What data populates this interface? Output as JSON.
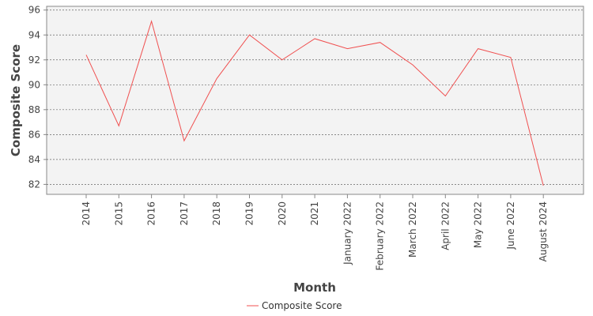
{
  "chart_data": {
    "type": "line",
    "title": "",
    "xlabel": "Month",
    "ylabel": "Composite Score",
    "categories": [
      "2014",
      "2015",
      "2016",
      "2017",
      "2018",
      "2019",
      "2020",
      "2021",
      "January 2022",
      "February 2022",
      "March 2022",
      "April 2022",
      "May 2022",
      "June 2022",
      "August 2024"
    ],
    "series": [
      {
        "name": "Composite Score",
        "color": "#f05050",
        "values": [
          92.4,
          86.7,
          95.1,
          85.5,
          90.5,
          94.0,
          92.0,
          93.7,
          92.9,
          93.4,
          91.6,
          89.1,
          92.9,
          92.2,
          81.9
        ]
      }
    ],
    "ylim": [
      81.2,
      96.3
    ],
    "yticks": [
      82,
      84,
      86,
      88,
      90,
      92,
      94,
      96
    ],
    "grid": true,
    "legend_position": "bottom-center"
  }
}
